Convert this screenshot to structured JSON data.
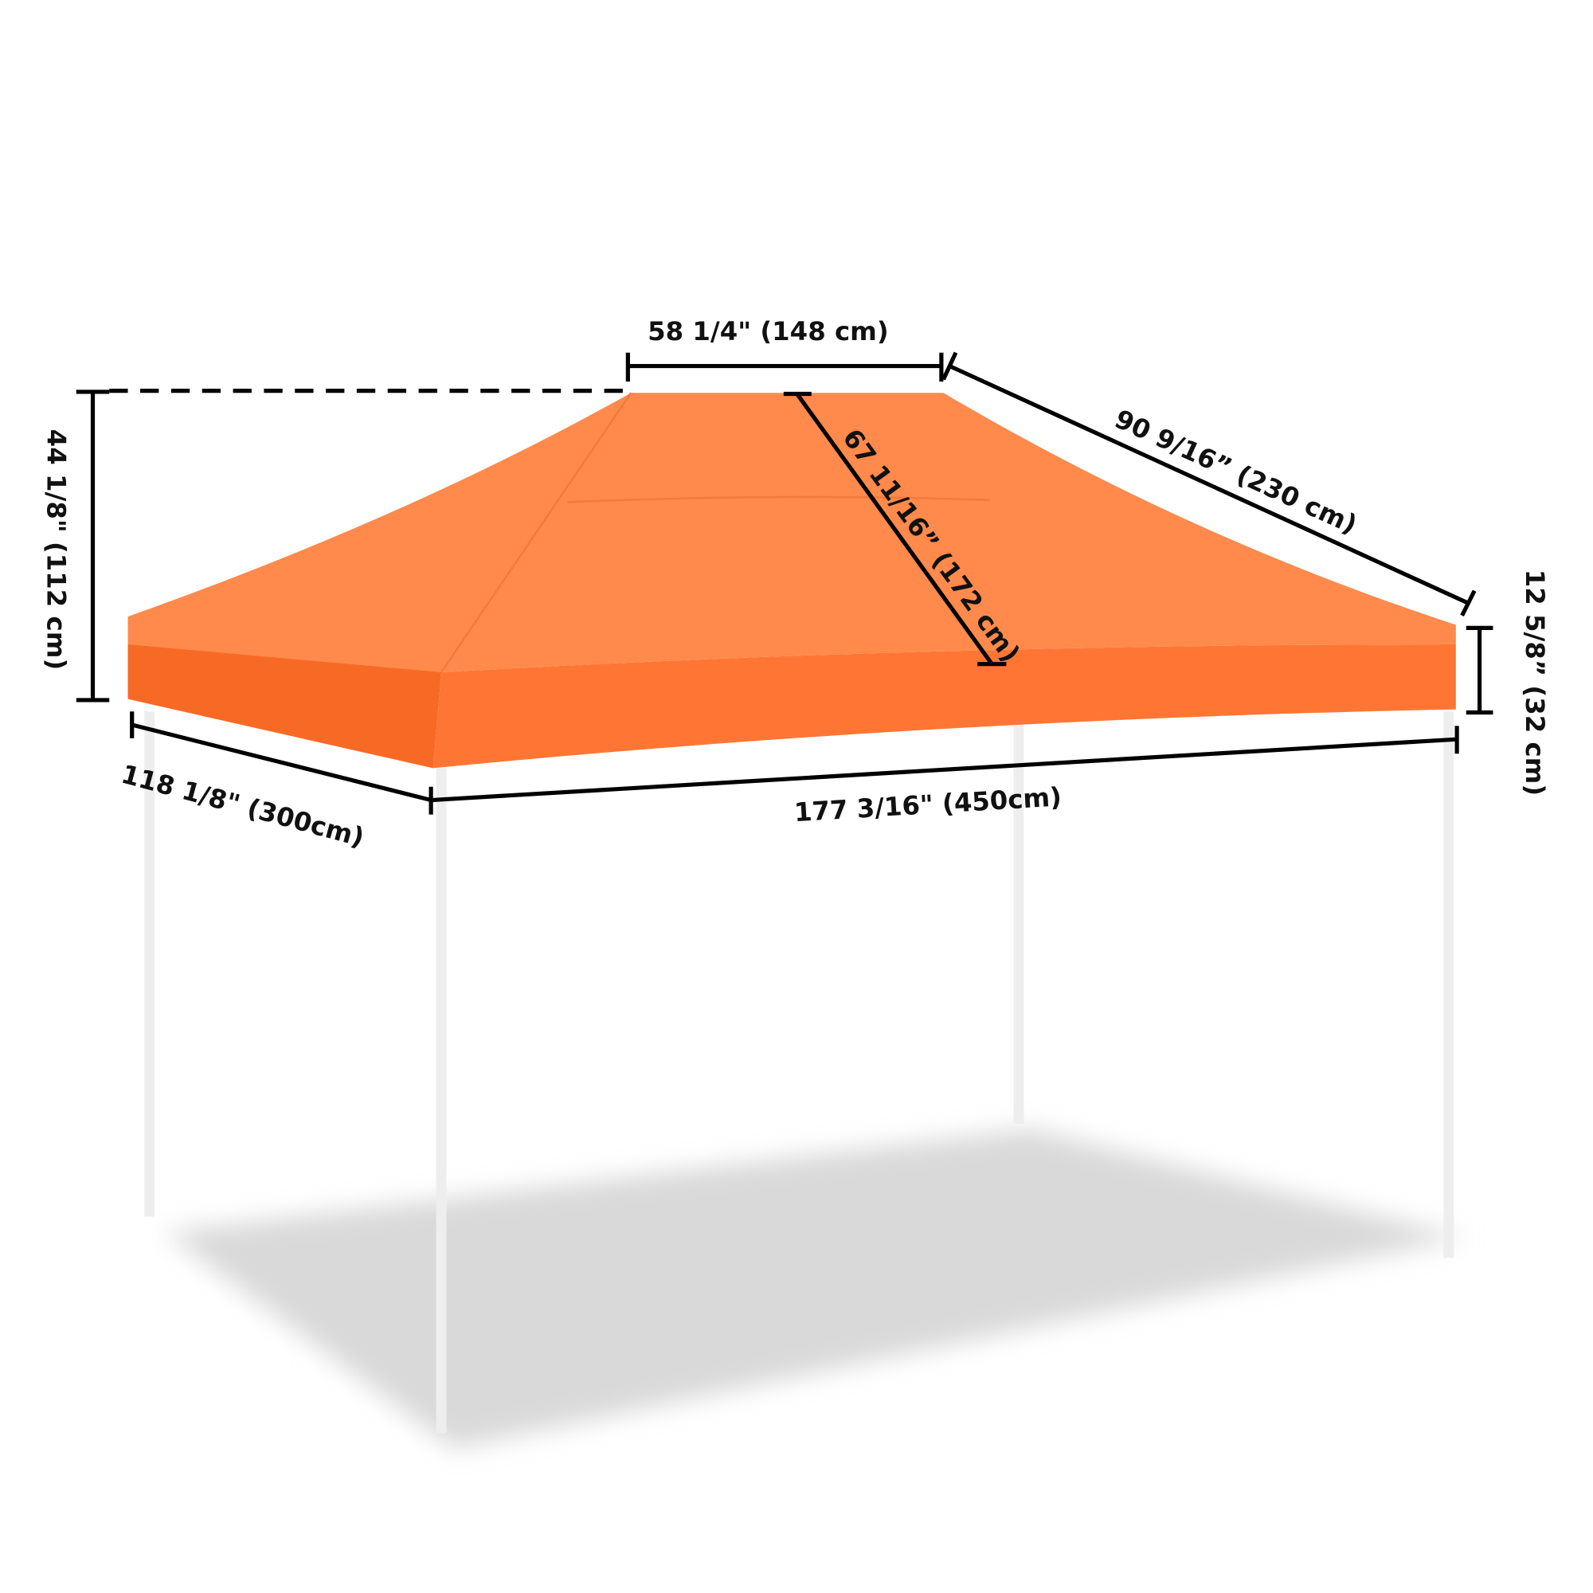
{
  "dimensions": {
    "top_width": "58 1/4\" (148 cm)",
    "top_depth": "90 9/16” (230 cm)",
    "slope": "67 11/16” (172 cm)",
    "height": "44 1/8\" (112 cm)",
    "valance": "12 5/8” (32 cm)",
    "depth": "118 1/8\" (300cm)",
    "width": "177 3/16\" (450cm)"
  }
}
